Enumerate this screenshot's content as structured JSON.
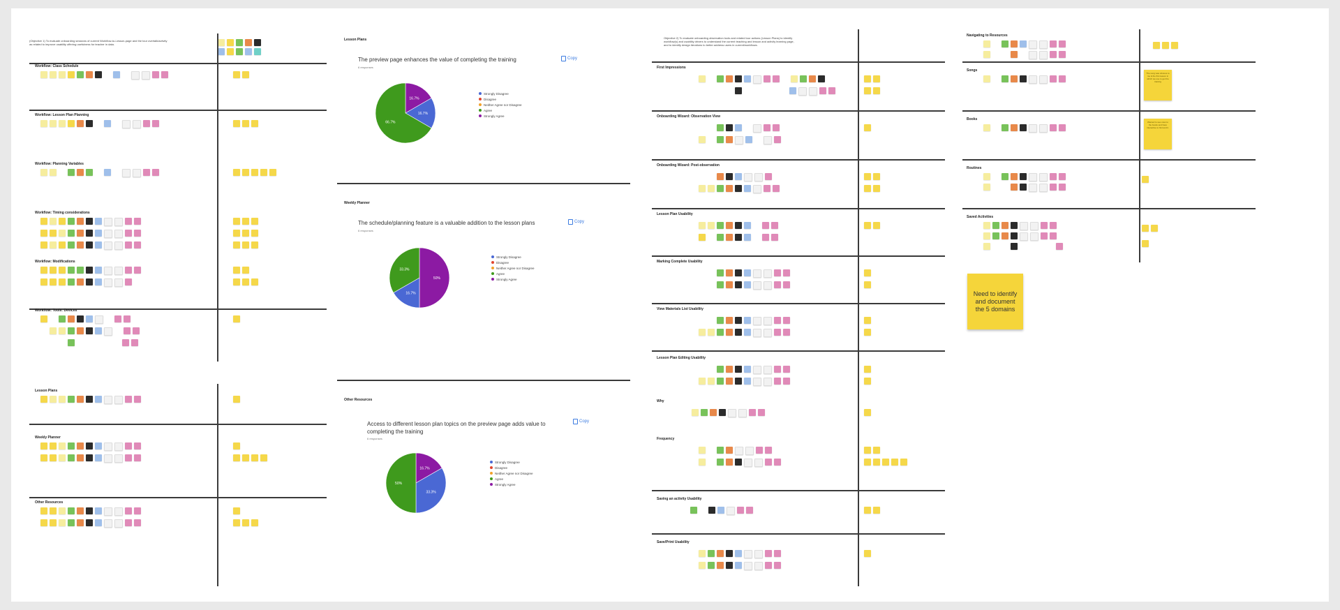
{
  "board": {
    "col1": {
      "intro": "(Objective 1) To evaluate onboarding sessions of current Workflow-to-Lesson-page and the tour overtalk/activity as related to improve usability offering usefulness for teacher in data.",
      "sections": [
        {
          "title": "Workflow: Class Schedule",
          "rows": [
            "ly ly ly y g o k e b e w w p p"
          ],
          "right": [
            "y y"
          ]
        },
        {
          "title": "Workflow: Lesson Plan Planning",
          "rows": [
            "ly ly ly y o k e b e w w p p"
          ],
          "right": [
            "y y y"
          ]
        },
        {
          "title": "Workflow: Planning Variables",
          "rows": [
            "ly ly e g o g e b e w w p p"
          ],
          "right": [
            "y y y y y"
          ]
        },
        {
          "title": "Workflow: Timing considerations",
          "rows": [
            "y ly y g o k b w w p p",
            "y y ly g o k b w w p p",
            "y ly y g o k b w w p p"
          ],
          "right": [
            "y y y",
            "y y y",
            "y y y"
          ]
        },
        {
          "title": "Workflow: Modifications",
          "rows": [
            "y y y g g k b w w p p",
            "y y y g o k b w w p"
          ],
          "right": [
            "y y",
            "y y y"
          ]
        },
        {
          "title": "Workflow: Tools: Devices",
          "rows": [
            "y e g o k b w e p p",
            "e ly ly g o k b w e p p",
            "e e e g e e e e e p p"
          ],
          "right": [
            "y"
          ]
        },
        {
          "title": "Lesson Plans",
          "rows": [
            "y ly ly g o k b w w p p"
          ],
          "right": [
            "y"
          ]
        },
        {
          "title": "Weekly Planner",
          "rows": [
            "y y ly g o k b w w p p",
            "y y ly g o k b w w p p"
          ],
          "right": [
            "y",
            "y y y y"
          ]
        },
        {
          "title": "Other Resources",
          "rows": [
            "y y ly g o k b w w p p",
            "y y ly g o k b w w p p"
          ],
          "right": [
            "y",
            "y y y"
          ]
        }
      ],
      "top_right": [
        "ly y g o k",
        "b y g b t"
      ]
    },
    "col2": {
      "cards": [
        {
          "section_title": "Lesson Plans",
          "question": "The preview page enhances the value of completing the training",
          "responses": "6 responses",
          "copy": "Copy",
          "chart_data": {
            "type": "pie",
            "categories": [
              "Strongly Disagree",
              "Disagree",
              "Neither Agree nor Disagree",
              "Agree",
              "Strongly Agree"
            ],
            "values": [
              16.7,
              0,
              0,
              66.7,
              16.7
            ],
            "slice_labels": [
              "16.7%",
              "",
              "",
              "66.7%",
              "16.7%"
            ],
            "colors": [
              "#4a68d4",
              "#e0452f",
              "#f2a22b",
              "#3f9a1d",
              "#8c1aa3"
            ]
          }
        },
        {
          "section_title": "Weekly Planner",
          "question": "The schedule/planning feature is a valuable addition to the lesson plans",
          "responses": "6 responses",
          "copy": "Copy",
          "chart_data": {
            "type": "pie",
            "categories": [
              "Strongly Disagree",
              "Disagree",
              "Neither Agree nor Disagree",
              "Agree",
              "Strongly Agree"
            ],
            "values": [
              16.7,
              0,
              0,
              33.3,
              50
            ],
            "slice_labels": [
              "16.7%",
              "",
              "",
              "33.3%",
              "50%"
            ],
            "colors": [
              "#4a68d4",
              "#e0452f",
              "#f2a22b",
              "#3f9a1d",
              "#8c1aa3"
            ]
          }
        },
        {
          "section_title": "Other Resources",
          "question": "Access to different lesson plan topics on the preview page adds value to completing the training",
          "responses": "6 responses",
          "copy": "Copy",
          "chart_data": {
            "type": "pie",
            "categories": [
              "Strongly Disagree",
              "Disagree",
              "Neither Agree nor Disagree",
              "Agree",
              "Strongly Agree"
            ],
            "values": [
              33.3,
              0,
              0,
              50,
              16.7
            ],
            "slice_labels": [
              "33.3%",
              "",
              "",
              "50%",
              "16.7%"
            ],
            "colors": [
              "#4a68d4",
              "#e0452f",
              "#f2a22b",
              "#3f9a1d",
              "#8c1aa3"
            ]
          }
        }
      ]
    },
    "col3": {
      "intro": "Objective 2) To evaluate onboarding observation tools and related tour actions (Lesson Plans) to identify workflow(s) and usability drivers to understand the current teaching and lesson and activity learning page, and to identify design iterations to better address users in current/workflows.",
      "sections": [
        {
          "title": "First Impressions",
          "rows": [
            "ly e g o k b w p p e ly g o k",
            "e e e e k e e e e e b w w p p"
          ],
          "right": [
            "y y",
            "y y"
          ]
        },
        {
          "title": "Onboarding Wizard: Observation View",
          "rows": [
            "e e g k b e w p p",
            "ly e g o w b e w p"
          ],
          "right": [
            "y"
          ]
        },
        {
          "title": "Onboarding Wizard: Post-observation",
          "rows": [
            "e e o k b w w p",
            "ly ly g o k b w p p"
          ],
          "right": [
            "y y",
            "y y"
          ]
        },
        {
          "title": "Lesson Plan Usability",
          "rows": [
            "ly ly g o k b e p p",
            "y e g o k b e p p"
          ],
          "right": [
            "y y"
          ]
        },
        {
          "title": "Marking Complete Usability",
          "rows": [
            "e e g o k b w w p p",
            "e e g o k b w w p p"
          ],
          "right": [
            "y",
            "y"
          ]
        },
        {
          "title": "View Materials List Usability",
          "rows": [
            "e e g o k b w w p p",
            "ly ly g o k b w w p p"
          ],
          "right": [
            "y",
            "y"
          ]
        },
        {
          "title": "Lesson Plan Editing Usability",
          "rows": [
            "e e g o k b w w p p",
            "ly ly g o k b w w p p"
          ],
          "right": [
            "y",
            "y"
          ]
        },
        {
          "title": "Why",
          "rows": [
            "ly g o k w w p p"
          ],
          "right": [
            "y"
          ]
        },
        {
          "title": "Frequency",
          "rows": [
            "ly e g o w w p p",
            "ly e g o k w w p p"
          ],
          "right": [
            "y y",
            "y y y y y"
          ]
        },
        {
          "title": "Saving an activity Usability",
          "rows": [
            "e g e k b w p p"
          ],
          "right": [
            "y y"
          ]
        },
        {
          "title": "Save/Print Usability",
          "rows": [
            "ly g o k b w w p p",
            "ly g o k b w w p p"
          ],
          "right": [
            "y"
          ]
        }
      ]
    },
    "col4": {
      "sections": [
        {
          "title": "Navigating to Resources",
          "rows": [
            "ly e g o b w w p p",
            "ly e e o e w w p p"
          ],
          "right": [
            "y y y"
          ]
        },
        {
          "title": "Songs",
          "rows": [
            "ly e g o k w w p p"
          ],
          "right": []
        },
        {
          "title": "Books",
          "rows": [
            "ly e g o k w w p p"
          ],
          "right": []
        },
        {
          "title": "Routines",
          "rows": [
            "ly e g o k w w p p",
            "ly e e o k w w p p"
          ],
          "right": [
            "y"
          ]
        },
        {
          "title": "Saved Activities",
          "rows": [
            "ly g o k w w p p",
            "ly g o k w w p p",
            "ly e e k e e e e p"
          ],
          "right": [
            "y y",
            "y"
          ]
        }
      ],
      "notes": {
        "songs_note": "The song was obvious to me & the first lesson in which we use to get the training",
        "books_note": "Wanted to see ones to the books and have interactive to find and it.",
        "big_note": "Need to identify and document the 5 domains"
      }
    }
  }
}
